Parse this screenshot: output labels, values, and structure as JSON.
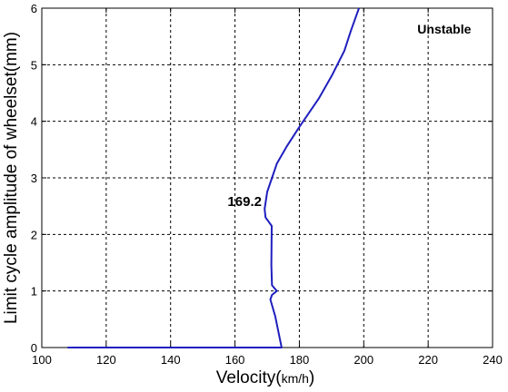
{
  "chart_data": {
    "type": "line",
    "xlabel_main": "Velocity(",
    "xlabel_unit": "km/h",
    "xlabel_close": ")",
    "ylabel": "Limit cycle amplitude of wheelset(mm)",
    "xlim": [
      100,
      240
    ],
    "ylim": [
      0,
      6
    ],
    "xticks": [
      100,
      120,
      140,
      160,
      180,
      200,
      220,
      240
    ],
    "yticks": [
      0,
      1,
      2,
      3,
      4,
      5,
      6
    ],
    "grid": true,
    "annotations": [
      {
        "text": "Unstable",
        "x": 225,
        "y": 5.55
      },
      {
        "text": "169.2",
        "x": 163,
        "y": 2.5
      }
    ],
    "series": [
      {
        "color": "#1f1fbf",
        "x": [
          108,
          174.5,
          172.5,
          171,
          171.5,
          173,
          171.5,
          171.3,
          171.4,
          169.5,
          169.2,
          170,
          171.5,
          173,
          176,
          180,
          186,
          190,
          194,
          196,
          198.5
        ],
        "y": [
          0,
          0,
          0.55,
          0.85,
          0.93,
          1.0,
          1.1,
          1.45,
          2.15,
          2.3,
          2.45,
          2.75,
          3.0,
          3.25,
          3.55,
          3.9,
          4.4,
          4.8,
          5.25,
          5.6,
          6.0
        ]
      }
    ]
  }
}
